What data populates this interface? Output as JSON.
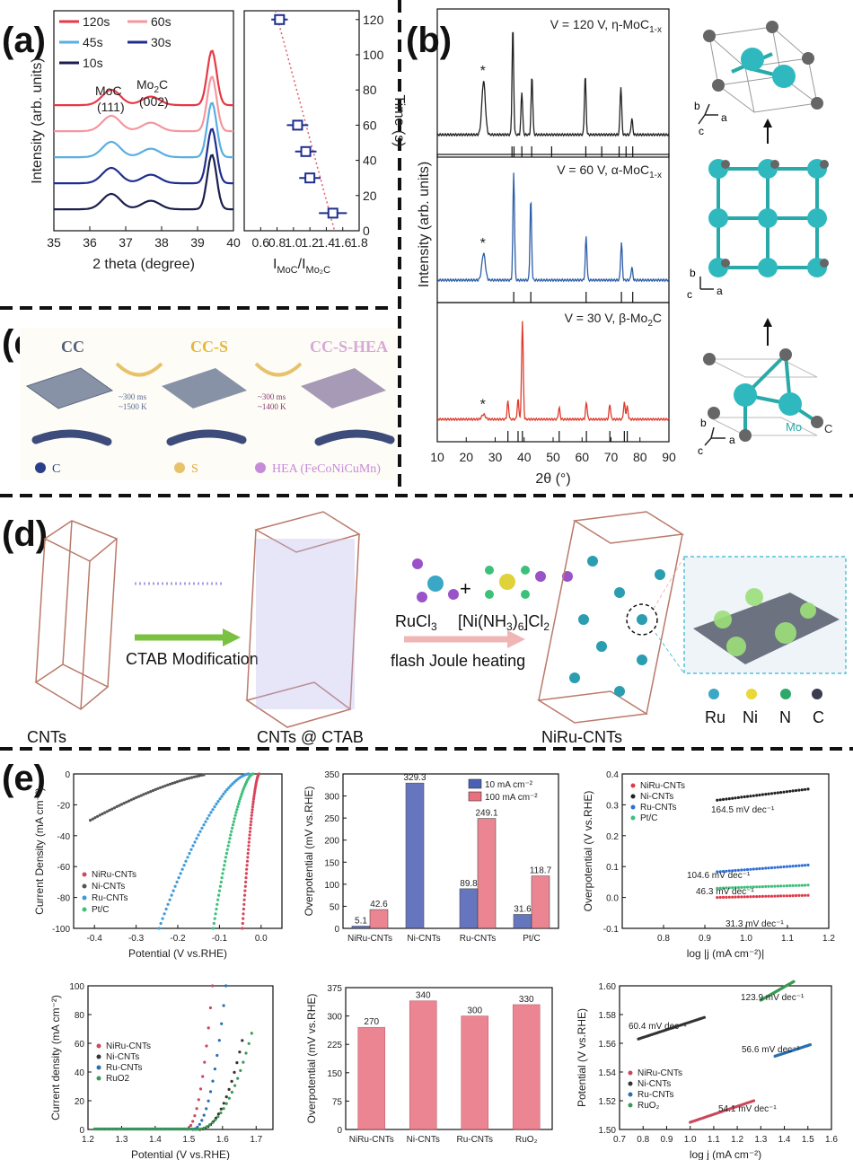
{
  "panel_labels": {
    "a": "(a)",
    "b": "(b)",
    "c": "(c)",
    "d": "(d)",
    "e": "(e)"
  },
  "panel_c": {
    "labels": [
      "CC",
      "CC-S",
      "CC-S-HEA"
    ],
    "cond1": [
      "~300 ms",
      "~1500 K"
    ],
    "cond2": [
      "~300 ms",
      "~1400 K"
    ],
    "legend": [
      "C",
      "S",
      "HEA (FeCoNiCuMn)"
    ]
  },
  "panel_d": {
    "step1": "CTAB Modification",
    "reagent1": "RuCl",
    "reagent1_sub": "3",
    "reagent2": "[Ni(NH",
    "reagent2_sub": "3",
    "reagent2_rest": ")",
    "reagent2_sub2": "6",
    "reagent2_end": "]Cl",
    "reagent2_sub3": "2",
    "step2": "flash Joule heating",
    "names": [
      "CNTs",
      "CNTs @ CTAB",
      "NiRu-CNTs"
    ],
    "legend": [
      "Ru",
      "Ni",
      "N",
      "C"
    ]
  },
  "chart_data": [
    {
      "id": "a1",
      "type": "line",
      "title": "",
      "xlabel": "2 theta (degree)",
      "ylabel": "Intensity (arb. units)",
      "xlim": [
        35,
        40
      ],
      "xticks": [
        35,
        36,
        37,
        38,
        39,
        40
      ],
      "legend": [
        "120s",
        "60s",
        "45s",
        "30s",
        "10s"
      ],
      "annotations": [
        "MoC",
        "(111)",
        "Mo2C",
        "(002)"
      ],
      "series": [
        {
          "name": "120s",
          "color": "#e63946",
          "offset": 4
        },
        {
          "name": "60s",
          "color": "#f4979e",
          "offset": 3
        },
        {
          "name": "45s",
          "color": "#5aaee0",
          "offset": 2
        },
        {
          "name": "30s",
          "color": "#1f2e8f",
          "offset": 1
        },
        {
          "name": "10s",
          "color": "#1a1f4d",
          "offset": 0
        }
      ],
      "peaks": [
        36.6,
        37.7,
        39.4
      ]
    },
    {
      "id": "a2",
      "type": "scatter",
      "xlabel": "I_MoC/I_Mo2C",
      "ylabel": "Time (s)",
      "xlim": [
        0.4,
        1.8
      ],
      "ylim": [
        0,
        125
      ],
      "xticks": [
        0.6,
        0.8,
        1.0,
        1.2,
        1.4,
        1.6,
        1.8
      ],
      "yticks": [
        0,
        20,
        40,
        60,
        80,
        100,
        120
      ],
      "points": [
        {
          "x": 0.83,
          "y": 120,
          "xerr": 0.1
        },
        {
          "x": 1.05,
          "y": 60,
          "xerr": 0.13
        },
        {
          "x": 1.15,
          "y": 45,
          "xerr": 0.13
        },
        {
          "x": 1.2,
          "y": 30,
          "xerr": 0.13
        },
        {
          "x": 1.48,
          "y": 10,
          "xerr": 0.17
        }
      ]
    },
    {
      "id": "b",
      "type": "line",
      "xlabel": "2θ (°)",
      "ylabel": "Intensity (arb. units)",
      "xlim": [
        10,
        90
      ],
      "xticks": [
        10,
        20,
        30,
        40,
        50,
        60,
        70,
        80,
        90
      ],
      "series": [
        {
          "name": "V = 120 V, η-MoC1-x",
          "label_main": "V = 120 V, η-MoC",
          "label_sub": "1-x",
          "color": "#222222",
          "peaks": [
            [
              26,
              0.5
            ],
            [
              36.1,
              1.0
            ],
            [
              39.2,
              0.4
            ],
            [
              42.7,
              0.55
            ],
            [
              61.1,
              0.55
            ],
            [
              73.4,
              0.45
            ],
            [
              77.2,
              0.15
            ]
          ],
          "refs": [
            35.8,
            36.5,
            39.2,
            42.6,
            49.5,
            61.3,
            66.8,
            72.8,
            75.2,
            77.5
          ]
        },
        {
          "name": "V = 60 V, α-MoC1-x",
          "label_main": "V = 60 V, α-MoC",
          "label_sub": "1-x",
          "color": "#2e5fa8",
          "peaks": [
            [
              26,
              0.25
            ],
            [
              36.4,
              1.0
            ],
            [
              42.3,
              0.75
            ],
            [
              61.4,
              0.4
            ],
            [
              73.6,
              0.35
            ],
            [
              77.2,
              0.12
            ]
          ],
          "refs": [
            36.4,
            42.3,
            61.4,
            73.6,
            77.5
          ]
        },
        {
          "name": "V = 30 V, β-Mo2C",
          "label_main": "V = 30 V, β-Mo",
          "label_sub": "2",
          "label_end": "C",
          "color": "#e03b2c",
          "peaks": [
            [
              26,
              0.05
            ],
            [
              34.4,
              0.18
            ],
            [
              37.9,
              0.2
            ],
            [
              39.4,
              1.0
            ],
            [
              52.1,
              0.12
            ],
            [
              61.5,
              0.17
            ],
            [
              69.6,
              0.15
            ],
            [
              74.6,
              0.17
            ],
            [
              75.6,
              0.13
            ]
          ],
          "refs": [
            34.4,
            37.9,
            39.4,
            52.1,
            61.5,
            69.6,
            74.6,
            75.6
          ]
        }
      ],
      "structure_labels": [
        "b",
        "c",
        "a",
        "Mo",
        "C"
      ]
    },
    {
      "id": "e1",
      "type": "line",
      "xlabel": "Potential (V vs.RHE)",
      "ylabel": "Current Density (mA cm⁻²)",
      "xlim": [
        -0.45,
        0.05
      ],
      "ylim": [
        -100,
        0
      ],
      "xticks": [
        -0.4,
        -0.3,
        -0.2,
        -0.1,
        0.0
      ],
      "yticks": [
        0,
        -20,
        -40,
        -60,
        -80,
        -100
      ],
      "series": [
        {
          "name": "NiRu-CNTs",
          "color": "#d6455a",
          "onset": -0.005,
          "end": -0.045
        },
        {
          "name": "Ni-CNTs",
          "color": "#555555",
          "onset": -0.12,
          "end": -0.41
        },
        {
          "name": "Ru-CNTs",
          "color": "#3d9ad8",
          "onset": -0.03,
          "end": -0.245
        },
        {
          "name": "Pt/C",
          "color": "#3cc07a",
          "onset": -0.02,
          "end": -0.115
        }
      ]
    },
    {
      "id": "e2",
      "type": "bar",
      "ylabel": "Overpotential (mV vs.RHE)",
      "categories": [
        "NiRu-CNTs",
        "Ni-CNTs",
        "Ru-CNTs",
        "Pt/C"
      ],
      "ylim": [
        0,
        350
      ],
      "yticks": [
        0,
        50,
        100,
        150,
        200,
        250,
        300,
        350
      ],
      "series": [
        {
          "name": "10 mA cm⁻²",
          "color": "#4b5fb5",
          "values": [
            5.1,
            329.3,
            89.8,
            31.6
          ]
        },
        {
          "name": "100 mA cm⁻²",
          "color": "#e8707f",
          "values": [
            42.6,
            null,
            249.1,
            118.7
          ]
        }
      ],
      "labels": [
        "5.1",
        "42.6",
        "329.3",
        "89.8",
        "249.1",
        "31.6",
        "118.7"
      ]
    },
    {
      "id": "e3",
      "type": "scatter",
      "xlabel": "log |j (mA cm⁻²)|",
      "ylabel": "Overpotential (V vs.RHE)",
      "xlim": [
        0.7,
        1.2
      ],
      "ylim": [
        -0.1,
        0.4
      ],
      "xticks": [
        0.8,
        0.9,
        1.0,
        1.1,
        1.2
      ],
      "yticks": [
        -0.1,
        0.0,
        0.1,
        0.2,
        0.3,
        0.4
      ],
      "series": [
        {
          "name": "NiRu-CNTs",
          "color": "#e03b4a",
          "x0": 0.93,
          "x1": 1.15,
          "y0": 0.0,
          "y1": 0.007,
          "annot": "31.3 mV dec⁻¹"
        },
        {
          "name": "Ni-CNTs",
          "color": "#222222",
          "x0": 0.93,
          "x1": 1.15,
          "y0": 0.315,
          "y1": 0.351,
          "annot": "164.5 mV dec⁻¹"
        },
        {
          "name": "Ru-CNTs",
          "color": "#2f6fd8",
          "x0": 0.93,
          "x1": 1.15,
          "y0": 0.083,
          "y1": 0.105,
          "annot": "104.6 mV dec⁻¹"
        },
        {
          "name": "Pt/C",
          "color": "#3cc07a",
          "x0": 0.93,
          "x1": 1.15,
          "y0": 0.03,
          "y1": 0.04,
          "annot": "46.3 mV dec⁻¹"
        }
      ]
    },
    {
      "id": "e4",
      "type": "line",
      "xlabel": "Potential (V vs.RHE)",
      "ylabel": "Current density (mA cm⁻²)",
      "xlim": [
        1.2,
        1.75
      ],
      "ylim": [
        0,
        100
      ],
      "xticks": [
        1.2,
        1.3,
        1.4,
        1.5,
        1.6,
        1.7
      ],
      "yticks": [
        0,
        20,
        40,
        60,
        80,
        100
      ],
      "series": [
        {
          "name": "NiRu-CNTs",
          "color": "#c9485b",
          "onset": 1.49,
          "x100": 1.57
        },
        {
          "name": "Ni-CNTs",
          "color": "#333333",
          "onset": 1.53,
          "x100": 1.69
        },
        {
          "name": "Ru-CNTs",
          "color": "#2a6fb0",
          "onset": 1.51,
          "x100": 1.61
        },
        {
          "name": "RuO2",
          "color": "#3a9a52",
          "onset": 1.52,
          "x100": 1.72
        }
      ]
    },
    {
      "id": "e5",
      "type": "bar",
      "ylabel": "Overpotential (mV vs.RHE)",
      "categories": [
        "NiRu-CNTs",
        "Ni-CNTs",
        "Ru-CNTs",
        "RuO₂"
      ],
      "ylim": [
        0,
        375
      ],
      "yticks": [
        0,
        75,
        150,
        225,
        300,
        375
      ],
      "values": [
        270,
        340,
        300,
        330
      ],
      "color": "#e8707f"
    },
    {
      "id": "e6",
      "type": "scatter",
      "xlabel": "log j (mA cm⁻²)",
      "ylabel": "Potential (V vs.RHE)",
      "xlim": [
        0.7,
        1.6
      ],
      "ylim": [
        1.5,
        1.6
      ],
      "xticks": [
        0.7,
        0.8,
        0.9,
        1.0,
        1.1,
        1.2,
        1.3,
        1.4,
        1.5,
        1.6
      ],
      "yticks": [
        1.5,
        1.52,
        1.54,
        1.56,
        1.58,
        1.6
      ],
      "series": [
        {
          "name": "NiRu-CNTs",
          "color": "#c9485b",
          "x0": 1.0,
          "x1": 1.27,
          "y0": 1.505,
          "y1": 1.52,
          "annot": "54.1 mV dec⁻¹"
        },
        {
          "name": "Ni-CNTs",
          "color": "#333333",
          "x0": 0.78,
          "x1": 1.06,
          "y0": 1.563,
          "y1": 1.578,
          "annot": "60.4 mV dec⁻¹"
        },
        {
          "name": "Ru-CNTs",
          "color": "#2a6fb0",
          "x0": 1.36,
          "x1": 1.51,
          "y0": 1.551,
          "y1": 1.559,
          "annot": "56.6 mV dec⁻¹"
        },
        {
          "name": "RuO₂",
          "color": "#3a9a52",
          "x0": 1.3,
          "x1": 1.44,
          "y0": 1.59,
          "y1": 1.603,
          "annot": "123.9 mV dec⁻¹"
        }
      ]
    }
  ]
}
